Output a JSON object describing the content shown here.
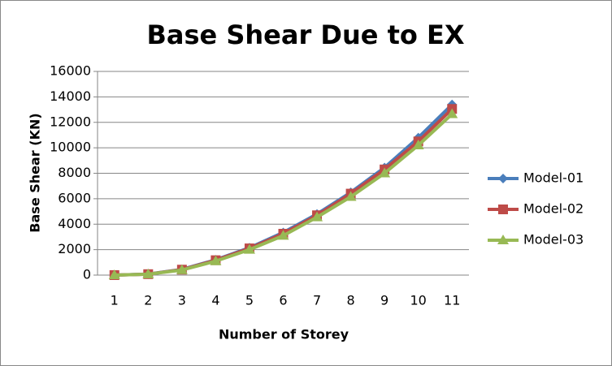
{
  "chart_data": {
    "type": "line",
    "title": "Base Shear Due to EX",
    "x_label": "Number of Storey",
    "y_label": "Base Shear (KN)",
    "categories": [
      "1",
      "2",
      "3",
      "4",
      "5",
      "6",
      "7",
      "8",
      "9",
      "10",
      "11"
    ],
    "series": [
      {
        "name": "Model-01",
        "color": "#4a7ebb",
        "marker": "diamond",
        "values": [
          0,
          80,
          450,
          1200,
          2150,
          3350,
          4800,
          6500,
          8450,
          10800,
          13400
        ]
      },
      {
        "name": "Model-02",
        "color": "#be4b48",
        "marker": "square",
        "values": [
          0,
          75,
          430,
          1170,
          2100,
          3250,
          4700,
          6400,
          8300,
          10500,
          13050
        ]
      },
      {
        "name": "Model-03",
        "color": "#98b954",
        "marker": "triangle",
        "values": [
          0,
          70,
          400,
          1100,
          2000,
          3100,
          4550,
          6150,
          8000,
          10200,
          12650
        ]
      }
    ],
    "ylim": [
      0,
      16000
    ],
    "yticks": [
      0,
      2000,
      4000,
      6000,
      8000,
      10000,
      12000,
      14000,
      16000
    ],
    "grid": true,
    "legend": "right"
  }
}
